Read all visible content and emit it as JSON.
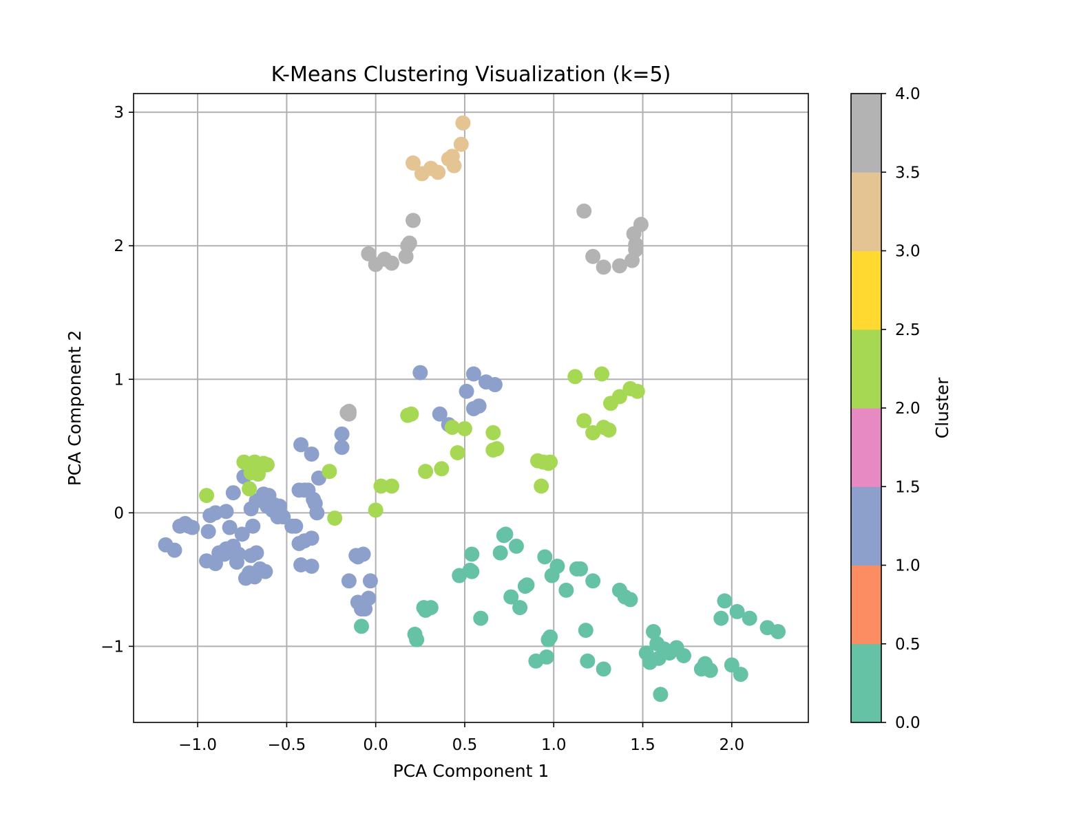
{
  "chart_data": {
    "type": "scatter",
    "title": "K-Means Clustering Visualization (k=5)",
    "xlabel": "PCA Component 1",
    "ylabel": "PCA Component 2",
    "xlim": [
      -1.36,
      2.43
    ],
    "ylim": [
      -1.57,
      3.14
    ],
    "xticks": [
      -1.0,
      -0.5,
      0.0,
      0.5,
      1.0,
      1.5,
      2.0
    ],
    "xtick_labels": [
      "−1.0",
      "−0.5",
      "0.0",
      "0.5",
      "1.0",
      "1.5",
      "2.0"
    ],
    "yticks": [
      -1,
      0,
      1,
      2,
      3
    ],
    "ytick_labels": [
      "−1",
      "0",
      "1",
      "2",
      "3"
    ],
    "grid": true,
    "colormap": "Set2",
    "colorbar": {
      "label": "Cluster",
      "range": [
        0.0,
        4.0
      ],
      "ticks": [
        0.0,
        0.5,
        1.0,
        1.5,
        2.0,
        2.5,
        3.0,
        3.5,
        4.0
      ],
      "tick_labels": [
        "0.0",
        "0.5",
        "1.0",
        "1.5",
        "2.0",
        "2.5",
        "3.0",
        "3.5",
        "4.0"
      ],
      "colors": [
        "#66c2a5",
        "#fc8d62",
        "#8da0cb",
        "#e78ac3",
        "#a6d854",
        "#ffd92f",
        "#e5c494",
        "#b3b3b3"
      ]
    },
    "series": [
      {
        "cluster": 0,
        "color": "#66c2a5",
        "points": [
          [
            -0.08,
            -0.85
          ],
          [
            0.22,
            -0.91
          ],
          [
            0.23,
            -0.95
          ],
          [
            0.27,
            -0.71
          ],
          [
            0.28,
            -0.73
          ],
          [
            0.31,
            -0.71
          ],
          [
            0.47,
            -0.47
          ],
          [
            0.54,
            -0.31
          ],
          [
            0.54,
            -0.44
          ],
          [
            0.53,
            -0.43
          ],
          [
            0.59,
            -0.79
          ],
          [
            0.7,
            -0.3
          ],
          [
            0.72,
            -0.17
          ],
          [
            0.73,
            -0.16
          ],
          [
            0.76,
            -0.63
          ],
          [
            0.79,
            -0.25
          ],
          [
            0.81,
            -0.71
          ],
          [
            0.84,
            -0.55
          ],
          [
            0.85,
            -0.54
          ],
          [
            0.9,
            -1.11
          ],
          [
            0.95,
            -0.33
          ],
          [
            0.96,
            -1.08
          ],
          [
            0.97,
            -0.95
          ],
          [
            0.98,
            -0.93
          ],
          [
            0.99,
            -0.47
          ],
          [
            1.02,
            -0.4
          ],
          [
            1.07,
            -0.58
          ],
          [
            1.13,
            -0.42
          ],
          [
            1.15,
            -0.42
          ],
          [
            1.18,
            -0.88
          ],
          [
            1.19,
            -1.11
          ],
          [
            1.22,
            -0.51
          ],
          [
            1.28,
            -1.17
          ],
          [
            1.37,
            -0.58
          ],
          [
            1.4,
            -0.63
          ],
          [
            1.43,
            -0.65
          ],
          [
            1.52,
            -1.05
          ],
          [
            1.54,
            -1.12
          ],
          [
            1.56,
            -0.89
          ],
          [
            1.58,
            -0.98
          ],
          [
            1.59,
            -1.09
          ],
          [
            1.6,
            -1.36
          ],
          [
            1.62,
            -1.02
          ],
          [
            1.65,
            -1.05
          ],
          [
            1.69,
            -1.01
          ],
          [
            1.73,
            -1.07
          ],
          [
            1.83,
            -1.17
          ],
          [
            1.85,
            -1.13
          ],
          [
            1.88,
            -1.18
          ],
          [
            1.94,
            -0.79
          ],
          [
            1.96,
            -0.66
          ],
          [
            2.0,
            -1.14
          ],
          [
            2.03,
            -0.74
          ],
          [
            2.05,
            -1.21
          ],
          [
            2.1,
            -0.79
          ],
          [
            2.2,
            -0.86
          ],
          [
            2.26,
            -0.89
          ]
        ]
      },
      {
        "cluster": 1,
        "color": "#8da0cb",
        "points": [
          [
            -1.18,
            -0.24
          ],
          [
            -1.13,
            -0.28
          ],
          [
            -1.1,
            -0.1
          ],
          [
            -1.07,
            -0.08
          ],
          [
            -1.05,
            -0.1
          ],
          [
            -1.03,
            -0.11
          ],
          [
            -0.95,
            -0.36
          ],
          [
            -0.94,
            -0.14
          ],
          [
            -0.93,
            -0.02
          ],
          [
            -0.9,
            -0.38
          ],
          [
            -0.9,
            0.0
          ],
          [
            -0.88,
            -0.3
          ],
          [
            -0.85,
            -0.31
          ],
          [
            -0.84,
            -0.27
          ],
          [
            -0.84,
            0.01
          ],
          [
            -0.82,
            -0.11
          ],
          [
            -0.8,
            -0.25
          ],
          [
            -0.8,
            0.15
          ],
          [
            -0.78,
            -0.37
          ],
          [
            -0.77,
            -0.31
          ],
          [
            -0.75,
            -0.16
          ],
          [
            -0.74,
            0.27
          ],
          [
            -0.73,
            -0.49
          ],
          [
            -0.71,
            -0.45
          ],
          [
            -0.7,
            -0.32
          ],
          [
            -0.7,
            0.03
          ],
          [
            -0.69,
            -0.1
          ],
          [
            -0.68,
            -0.48
          ],
          [
            -0.67,
            -0.3
          ],
          [
            -0.67,
            0.09
          ],
          [
            -0.65,
            -0.42
          ],
          [
            -0.64,
            0.1
          ],
          [
            -0.63,
            0.14
          ],
          [
            -0.62,
            -0.44
          ],
          [
            -0.61,
            0.05
          ],
          [
            -0.6,
            0.13
          ],
          [
            -0.58,
            0.02
          ],
          [
            -0.57,
            0.06
          ],
          [
            -0.55,
            -0.03
          ],
          [
            -0.54,
            0.05
          ],
          [
            -0.52,
            -0.03
          ],
          [
            -0.47,
            -0.1
          ],
          [
            -0.45,
            -0.1
          ],
          [
            -0.43,
            -0.23
          ],
          [
            -0.43,
            0.17
          ],
          [
            -0.42,
            -0.39
          ],
          [
            -0.42,
            0.51
          ],
          [
            -0.4,
            -0.21
          ],
          [
            -0.4,
            0.17
          ],
          [
            -0.38,
            0.17
          ],
          [
            -0.36,
            -0.19
          ],
          [
            -0.36,
            -0.4
          ],
          [
            -0.36,
            0.44
          ],
          [
            -0.35,
            0.1
          ],
          [
            -0.34,
            0.07
          ],
          [
            -0.33,
            0.0
          ],
          [
            -0.32,
            0.26
          ],
          [
            -0.19,
            0.49
          ],
          [
            -0.19,
            0.59
          ],
          [
            -0.15,
            -0.51
          ],
          [
            -0.11,
            -0.32
          ],
          [
            -0.1,
            -0.33
          ],
          [
            -0.1,
            -0.67
          ],
          [
            -0.08,
            -0.72
          ],
          [
            -0.07,
            -0.31
          ],
          [
            -0.06,
            -0.72
          ],
          [
            -0.03,
            -0.51
          ],
          [
            -0.04,
            -0.64
          ],
          [
            0.25,
            1.05
          ],
          [
            0.36,
            0.74
          ],
          [
            0.41,
            0.66
          ],
          [
            0.51,
            0.91
          ],
          [
            0.55,
            1.04
          ],
          [
            0.55,
            0.78
          ],
          [
            0.58,
            0.8
          ],
          [
            0.62,
            0.98
          ],
          [
            0.67,
            0.96
          ]
        ]
      },
      {
        "cluster": 2,
        "color": "#a6d854",
        "points": [
          [
            -0.95,
            0.13
          ],
          [
            -0.74,
            0.38
          ],
          [
            -0.71,
            0.18
          ],
          [
            -0.7,
            0.3
          ],
          [
            -0.68,
            0.38
          ],
          [
            -0.67,
            0.31
          ],
          [
            -0.66,
            0.29
          ],
          [
            -0.64,
            0.35
          ],
          [
            -0.63,
            0.37
          ],
          [
            -0.61,
            0.36
          ],
          [
            -0.26,
            0.31
          ],
          [
            -0.23,
            -0.04
          ],
          [
            0.0,
            0.02
          ],
          [
            0.03,
            0.2
          ],
          [
            0.09,
            0.2
          ],
          [
            0.18,
            0.73
          ],
          [
            0.2,
            0.74
          ],
          [
            0.28,
            0.31
          ],
          [
            0.37,
            0.33
          ],
          [
            0.43,
            0.64
          ],
          [
            0.46,
            0.45
          ],
          [
            0.5,
            0.63
          ],
          [
            0.66,
            0.47
          ],
          [
            0.66,
            0.6
          ],
          [
            0.68,
            0.48
          ],
          [
            0.91,
            0.39
          ],
          [
            0.93,
            0.2
          ],
          [
            0.94,
            0.38
          ],
          [
            0.97,
            0.37
          ],
          [
            0.98,
            0.38
          ],
          [
            1.12,
            1.02
          ],
          [
            1.17,
            0.69
          ],
          [
            1.22,
            0.6
          ],
          [
            1.27,
            1.04
          ],
          [
            1.28,
            0.64
          ],
          [
            1.31,
            0.62
          ],
          [
            1.32,
            0.82
          ],
          [
            1.37,
            0.87
          ],
          [
            1.43,
            0.93
          ],
          [
            1.47,
            0.91
          ]
        ]
      },
      {
        "cluster": 3,
        "color": "#e5c494",
        "points": [
          [
            0.21,
            2.62
          ],
          [
            0.26,
            2.54
          ],
          [
            0.31,
            2.58
          ],
          [
            0.35,
            2.55
          ],
          [
            0.41,
            2.65
          ],
          [
            0.43,
            2.67
          ],
          [
            0.44,
            2.6
          ],
          [
            0.48,
            2.76
          ],
          [
            0.49,
            2.92
          ]
        ]
      },
      {
        "cluster": 4,
        "color": "#b3b3b3",
        "points": [
          [
            -0.16,
            0.75
          ],
          [
            -0.15,
            0.76
          ],
          [
            -0.15,
            0.74
          ],
          [
            -0.04,
            1.94
          ],
          [
            0.0,
            1.86
          ],
          [
            0.05,
            1.9
          ],
          [
            0.09,
            1.87
          ],
          [
            0.17,
            1.92
          ],
          [
            0.18,
            2.0
          ],
          [
            0.19,
            2.02
          ],
          [
            0.21,
            2.19
          ],
          [
            1.17,
            2.26
          ],
          [
            1.22,
            1.92
          ],
          [
            1.28,
            1.84
          ],
          [
            1.37,
            1.85
          ],
          [
            1.44,
            1.89
          ],
          [
            1.46,
            1.97
          ],
          [
            1.46,
            2.01
          ],
          [
            1.45,
            2.09
          ],
          [
            1.49,
            2.16
          ]
        ]
      }
    ]
  }
}
